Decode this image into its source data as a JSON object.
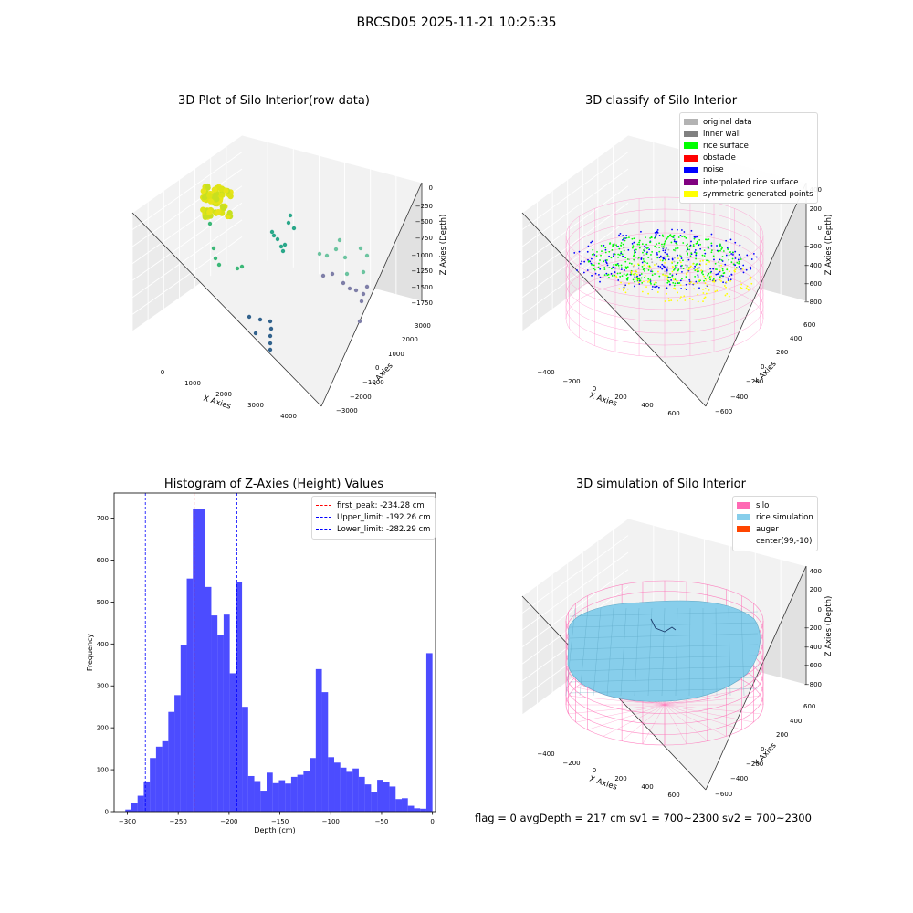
{
  "figure": {
    "suptitle": "BRCSD05 2025-11-21 10:25:35",
    "status_line": "flag = 0     avgDepth = 217 cm  sv1 = 700~2300  sv2 = 700~2300"
  },
  "panels": {
    "raw": {
      "title": "3D Plot of Silo Interior(row data)",
      "xlabel": "X Axies",
      "ylabel": "Y Axies",
      "zlabel": "Z Axies (Depth)",
      "xticks": [
        "0",
        "1000",
        "2000",
        "3000",
        "4000"
      ],
      "yticks": [
        "−3000",
        "−2000",
        "−1000",
        "0",
        "1000",
        "2000",
        "3000"
      ],
      "zticks": [
        "0",
        "−250",
        "−500",
        "−750",
        "−1000",
        "−1250",
        "−1500",
        "−1750"
      ]
    },
    "classify": {
      "title": "3D classify of Silo Interior",
      "xlabel": "X Axies",
      "ylabel": "Y Axies",
      "zlabel": "Z Axies (Depth)",
      "xticks": [
        "−400",
        "−200",
        "0",
        "200",
        "400",
        "600"
      ],
      "yticks": [
        "−600",
        "−400",
        "−200",
        "0",
        "200",
        "400",
        "600"
      ],
      "zticks": [
        "400",
        "200",
        "0",
        "−200",
        "−400",
        "−600",
        "−800"
      ],
      "legend": [
        {
          "label": "original data",
          "color": "#b3b3b3"
        },
        {
          "label": "inner wall",
          "color": "#808080"
        },
        {
          "label": "rice surface",
          "color": "#00ff00"
        },
        {
          "label": "obstacle",
          "color": "#ff0000"
        },
        {
          "label": "noise",
          "color": "#0000ff"
        },
        {
          "label": "interpolated rice surface",
          "color": "#800080"
        },
        {
          "label": "symmetric generated points",
          "color": "#ffff00"
        }
      ]
    },
    "simulation": {
      "title": "3D simulation of Silo Interior",
      "xlabel": "X Axies",
      "ylabel": "Y Axies",
      "zlabel": "Z Axies (Depth)",
      "xticks": [
        "−400",
        "−200",
        "0",
        "200",
        "400",
        "600"
      ],
      "yticks": [
        "−600",
        "−400",
        "−200",
        "0",
        "200",
        "400",
        "600"
      ],
      "zticks": [
        "400",
        "200",
        "0",
        "−200",
        "−400",
        "−600",
        "−800"
      ],
      "legend": [
        {
          "label": "silo",
          "color": "#ff69b4"
        },
        {
          "label": "rice simulation",
          "color": "#87ceeb"
        },
        {
          "label": "auger",
          "color": "#ff4500"
        },
        {
          "label": "center(99,-10)",
          "color": ""
        }
      ]
    }
  },
  "chart_data": [
    {
      "type": "scatter",
      "subtype": "3d",
      "title": "3D Plot of Silo Interior(row data)",
      "xlabel": "X Axies",
      "ylabel": "Y Axies",
      "zlabel": "Z Axies (Depth)",
      "xlim": [
        -500,
        4300
      ],
      "ylim": [
        -3300,
        3300
      ],
      "zlim": [
        -1900,
        100
      ],
      "grid": true
    },
    {
      "type": "scatter",
      "subtype": "3d",
      "title": "3D classify of Silo Interior",
      "xlabel": "X Axies",
      "ylabel": "Y Axies",
      "zlabel": "Z Axies (Depth)",
      "xlim": [
        -500,
        700
      ],
      "ylim": [
        -700,
        700
      ],
      "zlim": [
        -900,
        400
      ],
      "legend_position": "top-right",
      "series": [
        {
          "name": "original data"
        },
        {
          "name": "inner wall"
        },
        {
          "name": "rice surface"
        },
        {
          "name": "obstacle"
        },
        {
          "name": "noise"
        },
        {
          "name": "interpolated rice surface"
        },
        {
          "name": "symmetric generated points"
        }
      ],
      "grid": true
    },
    {
      "type": "bar",
      "subtype": "histogram",
      "title": "Histogram of Z-Axies (Height) Values",
      "xlabel": "Depth (cm)",
      "ylabel": "Frequency",
      "xlim": [
        -313,
        3
      ],
      "ylim": [
        0,
        760
      ],
      "xticks": [
        -300,
        -250,
        -200,
        -150,
        -100,
        -50,
        0
      ],
      "yticks": [
        0,
        100,
        200,
        300,
        400,
        500,
        600,
        700
      ],
      "bin_start": -302,
      "bin_width": 6.04,
      "values": [
        5,
        20,
        38,
        72,
        128,
        155,
        168,
        238,
        278,
        398,
        556,
        722,
        722,
        536,
        468,
        422,
        470,
        330,
        548,
        250,
        85,
        73,
        50,
        93,
        68,
        75,
        67,
        83,
        88,
        98,
        128,
        340,
        285,
        130,
        117,
        105,
        95,
        103,
        83,
        65,
        47,
        76,
        71,
        60,
        30,
        32,
        14,
        8,
        7,
        378
      ],
      "color": "#0000ff",
      "vlines": [
        {
          "label": "first_peak: -234.28 cm",
          "x": -234.28,
          "color": "#ff0000"
        },
        {
          "label": "Upper_limit: -192.26 cm",
          "x": -192.26,
          "color": "#0000ff"
        },
        {
          "label": "Lower_limit: -282.29 cm",
          "x": -282.29,
          "color": "#0000ff"
        }
      ],
      "legend_position": "top-right"
    },
    {
      "type": "scatter",
      "subtype": "3d-surface",
      "title": "3D simulation of Silo Interior",
      "xlabel": "X Axies",
      "ylabel": "Y Axies",
      "zlabel": "Z Axies (Depth)",
      "xlim": [
        -500,
        700
      ],
      "ylim": [
        -700,
        700
      ],
      "zlim": [
        -900,
        500
      ],
      "legend_position": "top-right",
      "series": [
        {
          "name": "silo"
        },
        {
          "name": "rice simulation"
        },
        {
          "name": "auger"
        }
      ],
      "grid": true
    }
  ]
}
